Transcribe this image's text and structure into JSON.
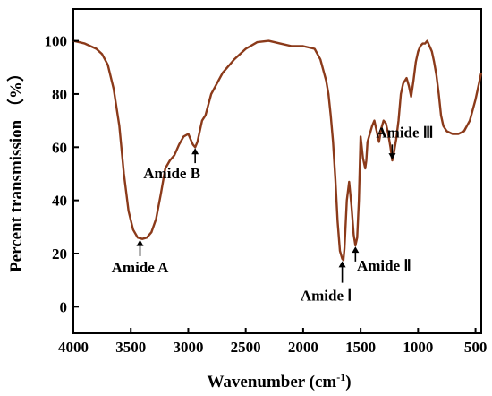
{
  "chart_data": {
    "type": "line",
    "xlabel": "Wavenumber (cm",
    "xlabel_sup": "-1",
    "xlabel_tail": ")",
    "ylabel": "Percent transmission （%）",
    "xlim": [
      4000,
      450
    ],
    "ylim": [
      -10,
      112
    ],
    "x_reversed": true,
    "grid": false,
    "x_ticks": [
      4000,
      3500,
      3000,
      2500,
      2000,
      1500,
      1000,
      500
    ],
    "y_ticks": [
      0,
      20,
      40,
      60,
      80,
      100
    ],
    "series": [
      {
        "color": "#8B3A1A",
        "x": [
          4000,
          3900,
          3800,
          3750,
          3700,
          3650,
          3600,
          3560,
          3520,
          3480,
          3440,
          3400,
          3360,
          3320,
          3280,
          3240,
          3200,
          3160,
          3120,
          3080,
          3040,
          3000,
          2980,
          2960,
          2940,
          2920,
          2900,
          2880,
          2850,
          2800,
          2700,
          2600,
          2500,
          2400,
          2300,
          2200,
          2100,
          2000,
          1900,
          1850,
          1800,
          1780,
          1760,
          1740,
          1720,
          1700,
          1680,
          1660,
          1650,
          1640,
          1620,
          1600,
          1580,
          1560,
          1545,
          1530,
          1515,
          1500,
          1480,
          1460,
          1450,
          1440,
          1420,
          1400,
          1380,
          1360,
          1340,
          1320,
          1300,
          1280,
          1260,
          1240,
          1225,
          1210,
          1190,
          1170,
          1150,
          1130,
          1100,
          1080,
          1060,
          1040,
          1020,
          1000,
          980,
          960,
          940,
          920,
          900,
          880,
          860,
          840,
          820,
          800,
          780,
          750,
          700,
          650,
          600,
          550,
          500,
          450
        ],
        "y": [
          100,
          99,
          97,
          95,
          91,
          82,
          68,
          50,
          36,
          29,
          26,
          25.5,
          26,
          28,
          33,
          42,
          52,
          55,
          57,
          61,
          64,
          65,
          63,
          61,
          60,
          62,
          66,
          70,
          72,
          80,
          88,
          93,
          97,
          99.5,
          100,
          99,
          98,
          98,
          97,
          93,
          85,
          80,
          72,
          62,
          48,
          32,
          21,
          18,
          17.5,
          22,
          40,
          47,
          38,
          27,
          23,
          26,
          40,
          64,
          56,
          52,
          55,
          62,
          65,
          68,
          70,
          66,
          62,
          67,
          70,
          69,
          65,
          60,
          55,
          58,
          63,
          70,
          80,
          84,
          86,
          83,
          79,
          85,
          92,
          96,
          98,
          99,
          99,
          100,
          98,
          96,
          92,
          87,
          80,
          72,
          68,
          66,
          65,
          65,
          66,
          70,
          78,
          88
        ]
      }
    ],
    "annotations": [
      {
        "label": "Amide A",
        "x": 3420,
        "y_tip": 25.5,
        "y_tail": 19
      },
      {
        "label": "Amide B",
        "x": 2940,
        "y_tip": 60,
        "y_tail": 54
      },
      {
        "label": "Amide Ⅰ",
        "x": 1660,
        "y_tip": 17.5,
        "y_tail": 9
      },
      {
        "label": "Amide Ⅱ",
        "x": 1545,
        "y_tip": 23,
        "y_tail": 17
      },
      {
        "label": "Amide Ⅲ",
        "x": 1225,
        "y_tip": 55,
        "y_tail": 61
      }
    ]
  }
}
